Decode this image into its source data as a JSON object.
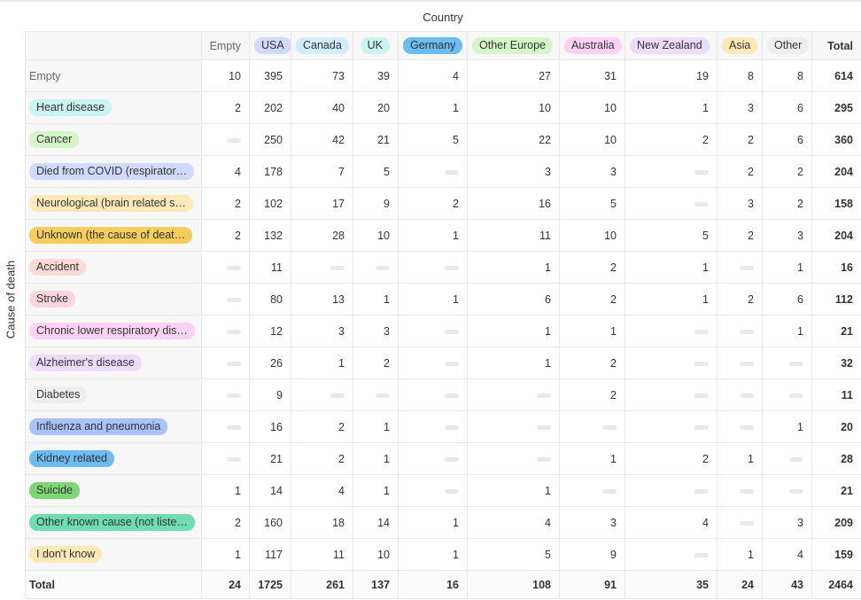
{
  "axes": {
    "column_title": "Country",
    "row_title": "Cause of death"
  },
  "columns": [
    {
      "label": "Empty",
      "color": ""
    },
    {
      "label": "USA",
      "color": "#d0dafd"
    },
    {
      "label": "Canada",
      "color": "#d3ecfd"
    },
    {
      "label": "UK",
      "color": "#c9f3ee"
    },
    {
      "label": "Germany",
      "color": "#6cbcf0"
    },
    {
      "label": "Other Europe",
      "color": "#d3f5c8"
    },
    {
      "label": "Australia",
      "color": "#fcd3f7"
    },
    {
      "label": "New Zealand",
      "color": "#ecdcfd"
    },
    {
      "label": "Asia",
      "color": "#fde9b8"
    },
    {
      "label": "Other",
      "color": "#eeeeee"
    }
  ],
  "total_label": "Total",
  "rows": [
    {
      "label": "Empty",
      "color": "",
      "values": [
        10,
        395,
        73,
        39,
        4,
        27,
        31,
        19,
        8,
        8
      ],
      "total": 614
    },
    {
      "label": "Heart disease",
      "color": "#c9f3ee",
      "values": [
        2,
        202,
        40,
        20,
        1,
        10,
        10,
        1,
        3,
        6
      ],
      "total": 295
    },
    {
      "label": "Cancer",
      "color": "#d3f5c8",
      "values": [
        null,
        250,
        42,
        21,
        5,
        22,
        10,
        2,
        2,
        6
      ],
      "total": 360
    },
    {
      "label": "Died from COVID (respirator…",
      "color": "#d0dafd",
      "values": [
        4,
        178,
        7,
        5,
        null,
        3,
        3,
        null,
        2,
        2
      ],
      "total": 204
    },
    {
      "label": "Neurological (brain related s…",
      "color": "#fde9b8",
      "values": [
        2,
        102,
        17,
        9,
        2,
        16,
        5,
        null,
        3,
        2
      ],
      "total": 158
    },
    {
      "label": "Unknown (the cause of deat…",
      "color": "#f4cd5c",
      "values": [
        2,
        132,
        28,
        10,
        1,
        11,
        10,
        5,
        2,
        3
      ],
      "total": 204
    },
    {
      "label": "Accident",
      "color": "#fcdbd2",
      "values": [
        null,
        11,
        null,
        null,
        null,
        1,
        2,
        1,
        null,
        1
      ],
      "total": 16
    },
    {
      "label": "Stroke",
      "color": "#fcd5df",
      "values": [
        null,
        80,
        13,
        1,
        1,
        6,
        2,
        1,
        2,
        6
      ],
      "total": 112
    },
    {
      "label": "Chronic lower respiratory dis…",
      "color": "#fcd3f7",
      "values": [
        null,
        12,
        3,
        3,
        null,
        1,
        1,
        null,
        null,
        1
      ],
      "total": 21
    },
    {
      "label": "Alzheimer's disease",
      "color": "#ecdcfd",
      "values": [
        null,
        26,
        1,
        2,
        null,
        1,
        2,
        null,
        null,
        null
      ],
      "total": 32
    },
    {
      "label": "Diabetes",
      "color": "#eeeeee",
      "values": [
        null,
        9,
        null,
        null,
        null,
        null,
        2,
        null,
        null,
        null
      ],
      "total": 11
    },
    {
      "label": "Influenza and pneumonia",
      "color": "#a9c3f8",
      "values": [
        null,
        16,
        2,
        1,
        null,
        null,
        null,
        null,
        null,
        1
      ],
      "total": 20
    },
    {
      "label": "Kidney related",
      "color": "#6cbcf0",
      "values": [
        null,
        21,
        2,
        1,
        null,
        null,
        1,
        2,
        1,
        null
      ],
      "total": 28
    },
    {
      "label": "Suicide",
      "color": "#7ed674",
      "values": [
        1,
        14,
        4,
        1,
        null,
        1,
        null,
        null,
        null,
        null
      ],
      "total": 21
    },
    {
      "label": "Other known cause (not liste…",
      "color": "#6fdcb4",
      "values": [
        2,
        160,
        18,
        14,
        1,
        4,
        3,
        4,
        null,
        3
      ],
      "total": 209
    },
    {
      "label": "I don't know",
      "color": "#fde9b8",
      "values": [
        1,
        117,
        11,
        10,
        1,
        5,
        9,
        null,
        1,
        4
      ],
      "total": 159
    }
  ],
  "footer": {
    "label": "Total",
    "values": [
      24,
      1725,
      261,
      137,
      16,
      108,
      91,
      35,
      24,
      43
    ],
    "total": 2464
  }
}
